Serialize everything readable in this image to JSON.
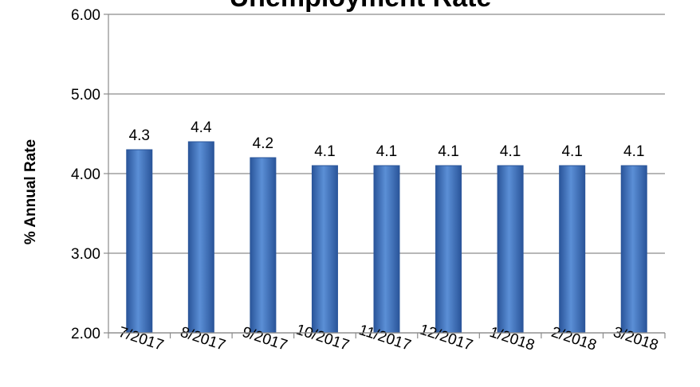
{
  "chart_data": {
    "type": "bar",
    "title": "Unemployment Rate",
    "ylabel": "% Annual Rate",
    "xlabel": "",
    "categories": [
      "7/2017",
      "8/2017",
      "9/2017",
      "10/2017",
      "11/2017",
      "12/2017",
      "1/2018",
      "2/2018",
      "3/2018"
    ],
    "values": [
      4.3,
      4.4,
      4.2,
      4.1,
      4.1,
      4.1,
      4.1,
      4.1,
      4.1
    ],
    "data_labels": [
      "4.3",
      "4.4",
      "4.2",
      "4.1",
      "4.1",
      "4.1",
      "4.1",
      "4.1",
      "4.1"
    ],
    "ylim": [
      2.0,
      6.0
    ],
    "yticks": [
      "2.00",
      "3.00",
      "4.00",
      "5.00",
      "6.00"
    ],
    "grid": true,
    "legend": "none",
    "colors": {
      "bar": "#4a7fc8",
      "bar_dark": "#2a559a",
      "grid": "#8c8c8c"
    }
  }
}
